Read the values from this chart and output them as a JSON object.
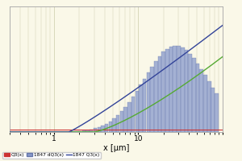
{
  "background_color": "#faf8e8",
  "grid_color": "#ccccaa",
  "xlim": [
    0.3,
    100
  ],
  "ylim_dq3": [
    0,
    8
  ],
  "ylim_q3": [
    0,
    100
  ],
  "xlabel": "x [μm]",
  "xlabel_fontsize": 7,
  "bar_color_fill": "#8899cc",
  "bar_color_edge": "#6677aa",
  "green_line_color": "#55aa33",
  "blue_line_color": "#334499",
  "red_line_color": "#cc3333",
  "legend_q3_label": "Q3(x)",
  "legend_dq3_label": "1847 dQ3(x)",
  "legend_Q3_label": "1847 Q3(x)"
}
